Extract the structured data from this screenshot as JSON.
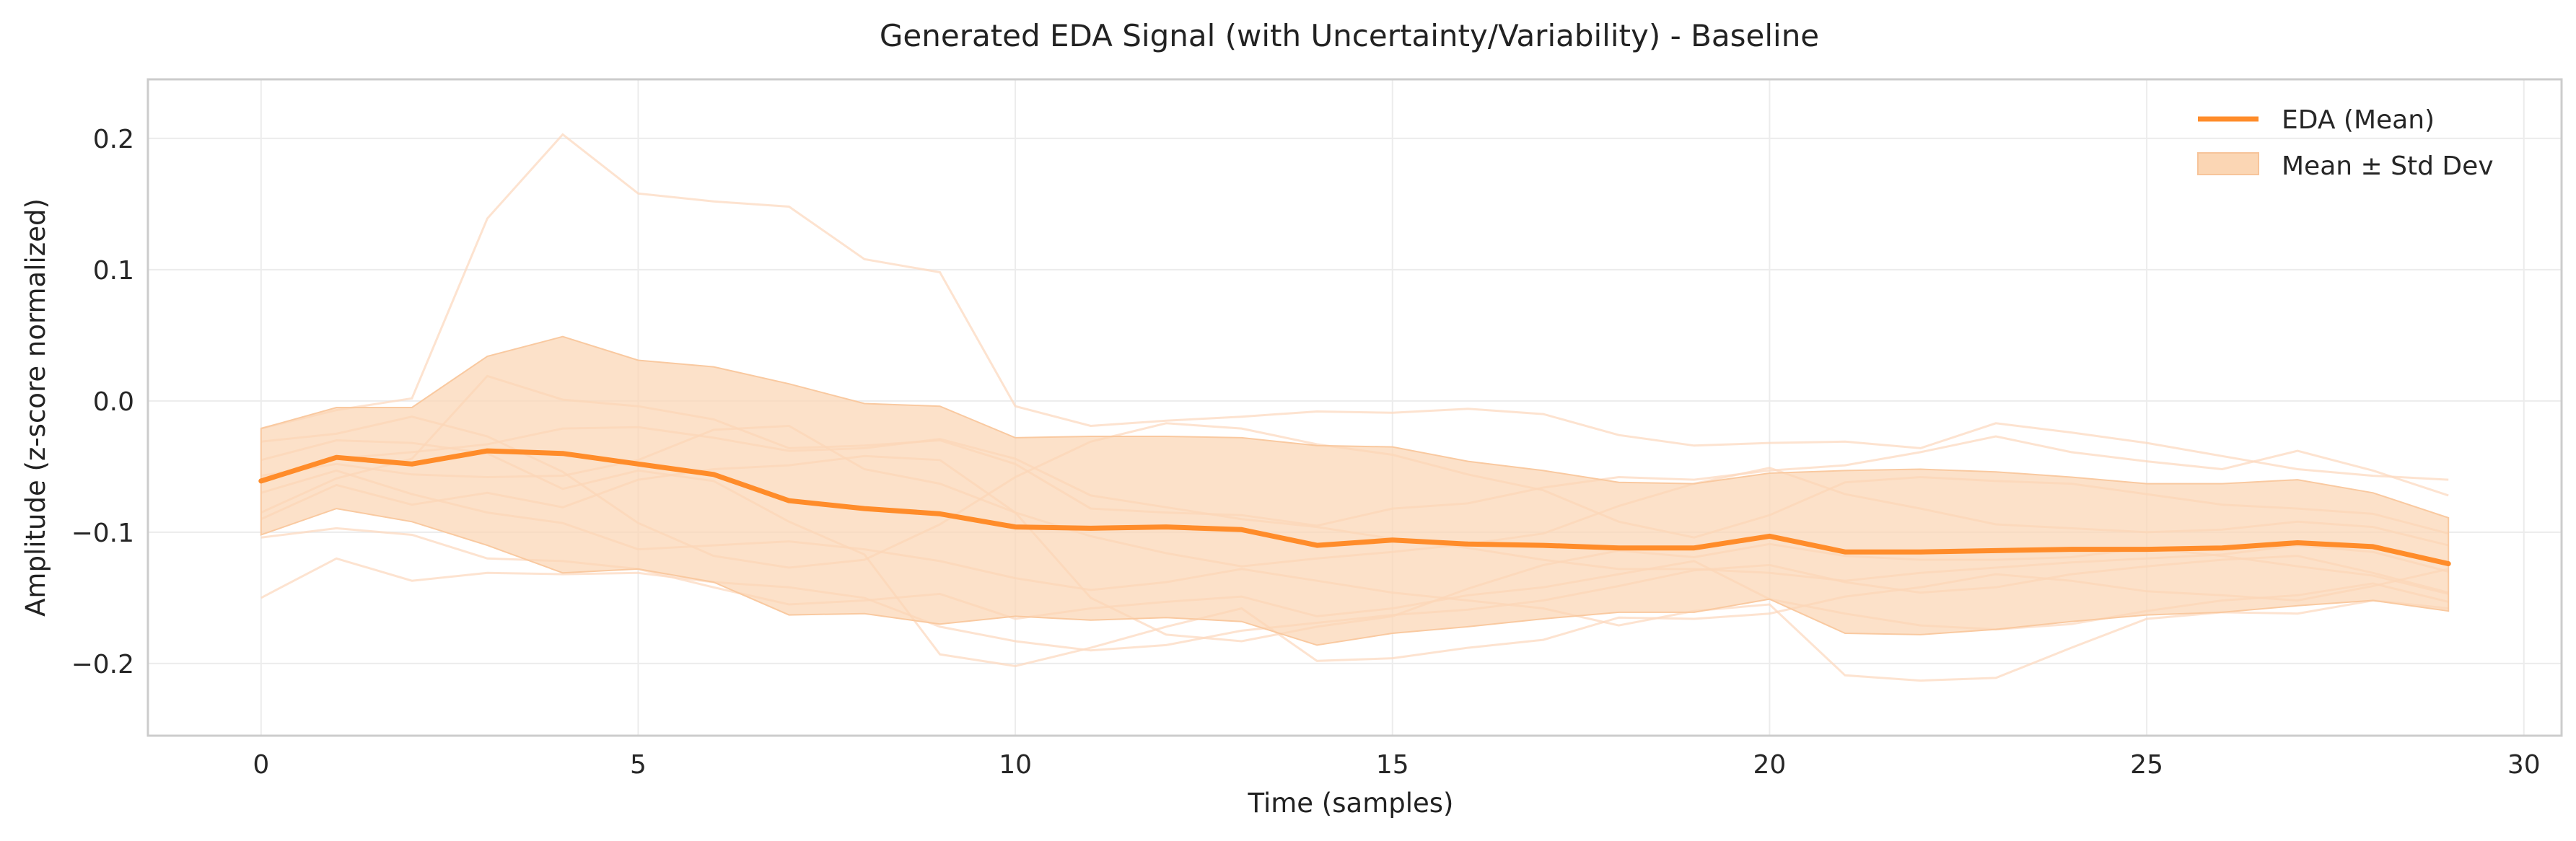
{
  "chart_data": {
    "type": "line",
    "title": "Generated EDA Signal (with Uncertainty/Variability) - Baseline",
    "xlabel": "Time (samples)",
    "ylabel": "Amplitude (z-score normalized)",
    "xlim": [
      -1.5,
      30.5
    ],
    "ylim": [
      -0.255,
      0.245
    ],
    "xticks": [
      0,
      5,
      10,
      15,
      20,
      25,
      30
    ],
    "yticks": [
      0.2,
      0.1,
      0.0,
      -0.1,
      -0.2
    ],
    "xtick_labels": [
      "0",
      "5",
      "10",
      "15",
      "20",
      "25",
      "30"
    ],
    "ytick_labels": [
      "0.2",
      "0.1",
      "0.0",
      "−0.1",
      "−0.2"
    ],
    "grid": true,
    "legend_position": "top-right",
    "colors": {
      "mean": "#ff8c2a",
      "band": "#fbd6b4",
      "samples": "#fcd9c0"
    },
    "x": [
      0,
      1,
      2,
      3,
      4,
      5,
      6,
      7,
      8,
      9,
      10,
      11,
      12,
      13,
      14,
      15,
      16,
      17,
      18,
      19,
      20,
      21,
      22,
      23,
      24,
      25,
      26,
      27,
      28,
      29
    ],
    "series": [
      {
        "name": "EDA (Mean)",
        "values": [
          -0.061,
          -0.043,
          -0.048,
          -0.038,
          -0.04,
          -0.048,
          -0.056,
          -0.076,
          -0.082,
          -0.086,
          -0.096,
          -0.097,
          -0.096,
          -0.098,
          -0.11,
          -0.106,
          -0.109,
          -0.11,
          -0.112,
          -0.112,
          -0.103,
          -0.115,
          -0.115,
          -0.114,
          -0.113,
          -0.113,
          -0.112,
          -0.108,
          -0.111,
          -0.124
        ]
      },
      {
        "name": "Mean ± Std Dev",
        "type": "band",
        "upper": [
          -0.021,
          -0.005,
          -0.005,
          0.034,
          0.049,
          0.031,
          0.026,
          0.013,
          -0.002,
          -0.004,
          -0.028,
          -0.027,
          -0.027,
          -0.028,
          -0.034,
          -0.035,
          -0.046,
          -0.053,
          -0.062,
          -0.063,
          -0.055,
          -0.053,
          -0.052,
          -0.054,
          -0.058,
          -0.063,
          -0.063,
          -0.06,
          -0.07,
          -0.089
        ],
        "lower": [
          -0.102,
          -0.082,
          -0.092,
          -0.11,
          -0.131,
          -0.128,
          -0.138,
          -0.163,
          -0.162,
          -0.17,
          -0.164,
          -0.167,
          -0.165,
          -0.168,
          -0.186,
          -0.177,
          -0.172,
          -0.166,
          -0.161,
          -0.161,
          -0.151,
          -0.177,
          -0.178,
          -0.174,
          -0.168,
          -0.163,
          -0.161,
          -0.156,
          -0.152,
          -0.16
        ]
      }
    ],
    "sample_traces": [
      [
        -0.15,
        -0.12,
        -0.137,
        -0.131,
        -0.132,
        -0.131,
        -0.138,
        -0.142,
        -0.15,
        -0.172,
        -0.183,
        -0.19,
        -0.186,
        -0.175,
        -0.169,
        -0.163,
        -0.159,
        -0.152,
        -0.141,
        -0.129,
        -0.125,
        -0.138,
        -0.146,
        -0.142,
        -0.132,
        -0.126,
        -0.121,
        -0.118,
        -0.131,
        -0.146
      ],
      [
        -0.021,
        -0.007,
        0.002,
        0.139,
        0.203,
        0.158,
        0.152,
        0.148,
        0.108,
        0.098,
        -0.004,
        -0.019,
        -0.015,
        -0.012,
        -0.008,
        -0.009,
        -0.006,
        -0.01,
        -0.026,
        -0.034,
        -0.032,
        -0.031,
        -0.036,
        -0.017,
        -0.024,
        -0.032,
        -0.042,
        -0.052,
        -0.057,
        -0.06
      ],
      [
        -0.104,
        -0.097,
        -0.102,
        -0.12,
        -0.122,
        -0.128,
        -0.142,
        -0.155,
        -0.152,
        -0.147,
        -0.166,
        -0.158,
        -0.153,
        -0.149,
        -0.164,
        -0.158,
        -0.148,
        -0.142,
        -0.132,
        -0.122,
        -0.151,
        -0.162,
        -0.171,
        -0.174,
        -0.17,
        -0.16,
        -0.152,
        -0.148,
        -0.139,
        -0.153
      ],
      [
        -0.031,
        -0.025,
        -0.012,
        -0.027,
        -0.054,
        -0.093,
        -0.118,
        -0.127,
        -0.121,
        -0.094,
        -0.058,
        -0.031,
        -0.017,
        -0.021,
        -0.033,
        -0.041,
        -0.056,
        -0.068,
        -0.092,
        -0.104,
        -0.087,
        -0.062,
        -0.058,
        -0.061,
        -0.063,
        -0.071,
        -0.079,
        -0.082,
        -0.086,
        -0.101
      ],
      [
        -0.07,
        -0.053,
        -0.071,
        -0.085,
        -0.093,
        -0.113,
        -0.11,
        -0.107,
        -0.113,
        -0.122,
        -0.135,
        -0.144,
        -0.138,
        -0.128,
        -0.137,
        -0.146,
        -0.152,
        -0.158,
        -0.171,
        -0.16,
        -0.155,
        -0.209,
        -0.213,
        -0.211,
        -0.188,
        -0.166,
        -0.161,
        -0.162,
        -0.152,
        -0.158
      ],
      [
        -0.045,
        -0.03,
        -0.032,
        -0.04,
        -0.067,
        -0.053,
        -0.061,
        -0.092,
        -0.117,
        -0.193,
        -0.202,
        -0.188,
        -0.172,
        -0.158,
        -0.198,
        -0.196,
        -0.188,
        -0.182,
        -0.165,
        -0.166,
        -0.162,
        -0.149,
        -0.142,
        -0.132,
        -0.137,
        -0.145,
        -0.148,
        -0.152,
        -0.141,
        -0.128
      ],
      [
        -0.09,
        -0.064,
        -0.079,
        -0.07,
        -0.081,
        -0.06,
        -0.052,
        -0.049,
        -0.042,
        -0.045,
        -0.085,
        -0.15,
        -0.178,
        -0.183,
        -0.172,
        -0.164,
        -0.143,
        -0.125,
        -0.114,
        -0.119,
        -0.109,
        -0.118,
        -0.121,
        -0.121,
        -0.119,
        -0.112,
        -0.118,
        -0.126,
        -0.133,
        -0.147
      ],
      [
        -0.057,
        -0.048,
        -0.056,
        -0.058,
        -0.057,
        -0.045,
        -0.022,
        -0.019,
        -0.052,
        -0.063,
        -0.085,
        -0.103,
        -0.116,
        -0.126,
        -0.12,
        -0.115,
        -0.109,
        -0.101,
        -0.08,
        -0.063,
        -0.051,
        -0.071,
        -0.082,
        -0.094,
        -0.097,
        -0.1,
        -0.098,
        -0.092,
        -0.096,
        -0.11
      ],
      [
        -0.062,
        -0.044,
        -0.039,
        -0.033,
        -0.021,
        -0.02,
        -0.028,
        -0.038,
        -0.036,
        -0.029,
        -0.044,
        -0.072,
        -0.081,
        -0.09,
        -0.096,
        -0.105,
        -0.112,
        -0.121,
        -0.128,
        -0.128,
        -0.131,
        -0.137,
        -0.131,
        -0.127,
        -0.123,
        -0.12,
        -0.117,
        -0.11,
        -0.115,
        -0.13
      ],
      [
        -0.085,
        -0.059,
        -0.044,
        0.019,
        0.001,
        -0.004,
        -0.014,
        -0.036,
        -0.034,
        -0.03,
        -0.048,
        -0.082,
        -0.085,
        -0.087,
        -0.095,
        -0.082,
        -0.078,
        -0.066,
        -0.058,
        -0.06,
        -0.053,
        -0.049,
        -0.039,
        -0.027,
        -0.039,
        -0.046,
        -0.052,
        -0.038,
        -0.053,
        -0.072
      ]
    ]
  }
}
